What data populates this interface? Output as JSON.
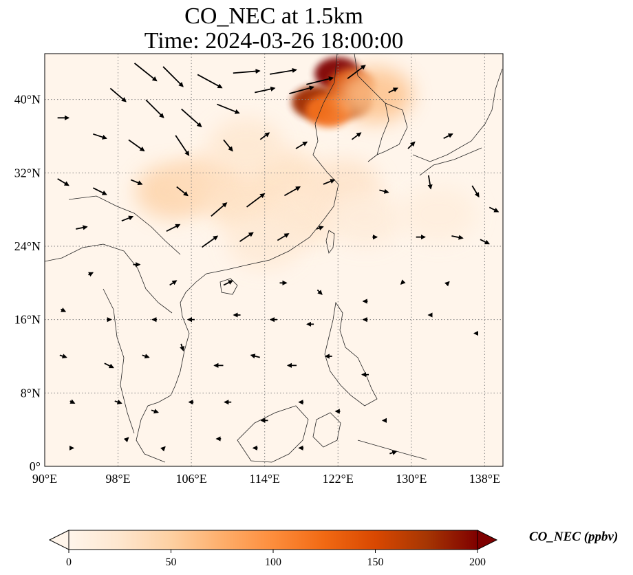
{
  "title": {
    "line1": "CO_NEC at 1.5km",
    "line2": "Time: 2024-03-26 18:00:00"
  },
  "map": {
    "projection": "PlateCarree",
    "lon_range": [
      90,
      140
    ],
    "lat_range": [
      0,
      45
    ],
    "gridlines": "dotted gray",
    "lon_ticks": [
      {
        "value": 90,
        "label": "90°E"
      },
      {
        "value": 98,
        "label": "98°E"
      },
      {
        "value": 106,
        "label": "106°E"
      },
      {
        "value": 114,
        "label": "114°E"
      },
      {
        "value": 122,
        "label": "122°E"
      },
      {
        "value": 130,
        "label": "130°E"
      },
      {
        "value": 138,
        "label": "138°E"
      }
    ],
    "lat_ticks": [
      {
        "value": 0,
        "label": "0°"
      },
      {
        "value": 8,
        "label": "8°N"
      },
      {
        "value": 16,
        "label": "16°N"
      },
      {
        "value": 24,
        "label": "24°N"
      },
      {
        "value": 32,
        "label": "32°N"
      },
      {
        "value": 40,
        "label": "40°N"
      }
    ],
    "concentration_features": [
      {
        "lon": 122.0,
        "lat": 42.8,
        "value": 200
      },
      {
        "lon": 119.5,
        "lat": 39.7,
        "value": 180
      },
      {
        "lon": 123.2,
        "lat": 39.8,
        "value": 170
      },
      {
        "lon": 123.5,
        "lat": 41.5,
        "value": 150
      },
      {
        "lon": 121.0,
        "lat": 38.8,
        "value": 120
      },
      {
        "lon": 126.0,
        "lat": 40.5,
        "value": 60
      },
      {
        "lon": 104.0,
        "lat": 30.0,
        "value": 45
      },
      {
        "lon": 108.0,
        "lat": 31.0,
        "value": 35
      },
      {
        "lon": 112.0,
        "lat": 28.5,
        "value": 30
      },
      {
        "lon": 116.0,
        "lat": 31.5,
        "value": 30
      },
      {
        "lon": 112.0,
        "lat": 35.0,
        "value": 22
      },
      {
        "lon": 118.0,
        "lat": 27.0,
        "value": 25
      },
      {
        "lon": 122.5,
        "lat": 30.5,
        "value": 28
      },
      {
        "lon": 114.0,
        "lat": 24.5,
        "value": 18
      },
      {
        "lon": 125.0,
        "lat": 27.0,
        "value": 15
      },
      {
        "lon": 133.0,
        "lat": 27.5,
        "value": 12
      }
    ],
    "wind_vectors": [
      {
        "lon": 101.0,
        "lat": 43.0,
        "u": 10,
        "v": -8
      },
      {
        "lon": 104.0,
        "lat": 42.5,
        "u": 9,
        "v": -9
      },
      {
        "lon": 108.0,
        "lat": 42.0,
        "u": 11,
        "v": -6
      },
      {
        "lon": 112.0,
        "lat": 43.0,
        "u": 12,
        "v": 1
      },
      {
        "lon": 116.0,
        "lat": 43.0,
        "u": 12,
        "v": 2
      },
      {
        "lon": 120.0,
        "lat": 42.0,
        "u": 12,
        "v": 3
      },
      {
        "lon": 124.0,
        "lat": 43.0,
        "u": 8,
        "v": 6
      },
      {
        "lon": 98.0,
        "lat": 40.5,
        "u": 7,
        "v": -6
      },
      {
        "lon": 102.0,
        "lat": 39.0,
        "u": 8,
        "v": -8
      },
      {
        "lon": 106.0,
        "lat": 38.0,
        "u": 9,
        "v": -8
      },
      {
        "lon": 110.0,
        "lat": 39.0,
        "u": 10,
        "v": -4
      },
      {
        "lon": 114.0,
        "lat": 41.0,
        "u": 9,
        "v": 2
      },
      {
        "lon": 118.0,
        "lat": 41.0,
        "u": 11,
        "v": 3
      },
      {
        "lon": 128.0,
        "lat": 41.0,
        "u": 4,
        "v": 2
      },
      {
        "lon": 92.0,
        "lat": 38.0,
        "u": 5,
        "v": 0
      },
      {
        "lon": 96.0,
        "lat": 36.0,
        "u": 6,
        "v": -2
      },
      {
        "lon": 100.0,
        "lat": 35.0,
        "u": 7,
        "v": -5
      },
      {
        "lon": 105.0,
        "lat": 35.0,
        "u": 6,
        "v": -9
      },
      {
        "lon": 110.0,
        "lat": 35.0,
        "u": 4,
        "v": -5
      },
      {
        "lon": 114.0,
        "lat": 36.0,
        "u": 4,
        "v": 3
      },
      {
        "lon": 118.0,
        "lat": 35.0,
        "u": 5,
        "v": 3
      },
      {
        "lon": 124.0,
        "lat": 36.0,
        "u": 4,
        "v": 3
      },
      {
        "lon": 130.0,
        "lat": 35.0,
        "u": 3,
        "v": 3
      },
      {
        "lon": 134.0,
        "lat": 36.0,
        "u": 4,
        "v": 2
      },
      {
        "lon": 92.0,
        "lat": 31.0,
        "u": 5,
        "v": -3
      },
      {
        "lon": 96.0,
        "lat": 30.0,
        "u": 6,
        "v": -3
      },
      {
        "lon": 100.0,
        "lat": 31.0,
        "u": 5,
        "v": -2
      },
      {
        "lon": 105.0,
        "lat": 30.0,
        "u": 5,
        "v": -4
      },
      {
        "lon": 109.0,
        "lat": 28.0,
        "u": 7,
        "v": 6
      },
      {
        "lon": 113.0,
        "lat": 29.0,
        "u": 8,
        "v": 6
      },
      {
        "lon": 117.0,
        "lat": 30.0,
        "u": 7,
        "v": 4
      },
      {
        "lon": 121.0,
        "lat": 31.0,
        "u": 5,
        "v": 2
      },
      {
        "lon": 127.0,
        "lat": 30.0,
        "u": 4,
        "v": -1
      },
      {
        "lon": 132.0,
        "lat": 31.0,
        "u": 1,
        "v": -6
      },
      {
        "lon": 137.0,
        "lat": 30.0,
        "u": 3,
        "v": -5
      },
      {
        "lon": 139.0,
        "lat": 28.0,
        "u": 4,
        "v": -2
      },
      {
        "lon": 94.0,
        "lat": 26.0,
        "u": 5,
        "v": 1
      },
      {
        "lon": 99.0,
        "lat": 27.0,
        "u": 5,
        "v": 2
      },
      {
        "lon": 104.0,
        "lat": 26.0,
        "u": 6,
        "v": 3
      },
      {
        "lon": 108.0,
        "lat": 24.5,
        "u": 7,
        "v": 5
      },
      {
        "lon": 112.0,
        "lat": 25.0,
        "u": 6,
        "v": 4
      },
      {
        "lon": 116.0,
        "lat": 25.0,
        "u": 5,
        "v": 3
      },
      {
        "lon": 120.0,
        "lat": 26.0,
        "u": 3,
        "v": 1
      },
      {
        "lon": 126.0,
        "lat": 25.0,
        "u": 2,
        "v": 0
      },
      {
        "lon": 131.0,
        "lat": 25.0,
        "u": 4,
        "v": 0
      },
      {
        "lon": 135.0,
        "lat": 25.0,
        "u": 5,
        "v": -1
      },
      {
        "lon": 138.0,
        "lat": 24.5,
        "u": 4,
        "v": -2
      },
      {
        "lon": 95.0,
        "lat": 21.0,
        "u": 2,
        "v": 1
      },
      {
        "lon": 100.0,
        "lat": 22.0,
        "u": 3,
        "v": 0
      },
      {
        "lon": 104.0,
        "lat": 20.0,
        "u": 3,
        "v": 2
      },
      {
        "lon": 110.0,
        "lat": 20.0,
        "u": 4,
        "v": 2
      },
      {
        "lon": 116.0,
        "lat": 20.0,
        "u": 3,
        "v": 0
      },
      {
        "lon": 120.0,
        "lat": 19.0,
        "u": 2,
        "v": -2
      },
      {
        "lon": 125.0,
        "lat": 18.0,
        "u": -2,
        "v": 0
      },
      {
        "lon": 129.0,
        "lat": 20.0,
        "u": -1,
        "v": -1
      },
      {
        "lon": 134.0,
        "lat": 20.0,
        "u": 1,
        "v": 1
      },
      {
        "lon": 92.0,
        "lat": 17.0,
        "u": 2,
        "v": -1
      },
      {
        "lon": 97.0,
        "lat": 16.0,
        "u": 2,
        "v": 0
      },
      {
        "lon": 102.0,
        "lat": 16.0,
        "u": -2,
        "v": 0
      },
      {
        "lon": 106.0,
        "lat": 16.0,
        "u": -3,
        "v": 0
      },
      {
        "lon": 111.0,
        "lat": 16.5,
        "u": -3,
        "v": 0
      },
      {
        "lon": 115.0,
        "lat": 16.0,
        "u": -3,
        "v": 0
      },
      {
        "lon": 119.0,
        "lat": 15.5,
        "u": -3,
        "v": 0
      },
      {
        "lon": 125.0,
        "lat": 16.0,
        "u": -2,
        "v": 0
      },
      {
        "lon": 132.0,
        "lat": 16.5,
        "u": -1,
        "v": 0
      },
      {
        "lon": 137.0,
        "lat": 14.5,
        "u": -1,
        "v": 0
      },
      {
        "lon": 92.0,
        "lat": 12.0,
        "u": 3,
        "v": -1
      },
      {
        "lon": 97.0,
        "lat": 11.0,
        "u": 4,
        "v": -2
      },
      {
        "lon": 101.0,
        "lat": 12.0,
        "u": 3,
        "v": -1
      },
      {
        "lon": 105.0,
        "lat": 13.0,
        "u": 1,
        "v": -3
      },
      {
        "lon": 109.0,
        "lat": 11.0,
        "u": -4,
        "v": 0
      },
      {
        "lon": 113.0,
        "lat": 12.0,
        "u": -4,
        "v": 1
      },
      {
        "lon": 117.0,
        "lat": 11.0,
        "u": -4,
        "v": 0
      },
      {
        "lon": 121.0,
        "lat": 12.0,
        "u": -3,
        "v": 0
      },
      {
        "lon": 125.0,
        "lat": 10.0,
        "u": -3,
        "v": 0
      },
      {
        "lon": 93.0,
        "lat": 7.0,
        "u": 2,
        "v": -1
      },
      {
        "lon": 98.0,
        "lat": 7.0,
        "u": 3,
        "v": -1
      },
      {
        "lon": 102.0,
        "lat": 6.0,
        "u": 3,
        "v": -1
      },
      {
        "lon": 106.0,
        "lat": 7.0,
        "u": -2,
        "v": 0
      },
      {
        "lon": 110.0,
        "lat": 7.0,
        "u": -3,
        "v": 0
      },
      {
        "lon": 114.0,
        "lat": 5.0,
        "u": -3,
        "v": 0
      },
      {
        "lon": 118.0,
        "lat": 7.0,
        "u": -2,
        "v": 0
      },
      {
        "lon": 122.0,
        "lat": 6.0,
        "u": -2,
        "v": 0
      },
      {
        "lon": 127.0,
        "lat": 5.0,
        "u": -1,
        "v": 0
      },
      {
        "lon": 93.0,
        "lat": 2.0,
        "u": 1,
        "v": 0
      },
      {
        "lon": 99.0,
        "lat": 3.0,
        "u": 1,
        "v": 1
      },
      {
        "lon": 103.0,
        "lat": 2.0,
        "u": 1,
        "v": 1
      },
      {
        "lon": 109.0,
        "lat": 3.0,
        "u": -2,
        "v": 0
      },
      {
        "lon": 113.0,
        "lat": 2.0,
        "u": -2,
        "v": 0
      },
      {
        "lon": 118.0,
        "lat": 2.0,
        "u": -2,
        "v": 0
      },
      {
        "lon": 128.0,
        "lat": 1.5,
        "u": 3,
        "v": 1
      }
    ]
  },
  "colorbar": {
    "label": "CO_NEC (ppbv)",
    "min": 0,
    "max": 200,
    "ticks": [
      "0",
      "50",
      "100",
      "150",
      "200"
    ],
    "colors": [
      "#fff5eb",
      "#fee6ce",
      "#fdd0a2",
      "#fdae6b",
      "#fd8d3c",
      "#f16913",
      "#d94801",
      "#a63603",
      "#7f0000"
    ],
    "extend": "both"
  }
}
